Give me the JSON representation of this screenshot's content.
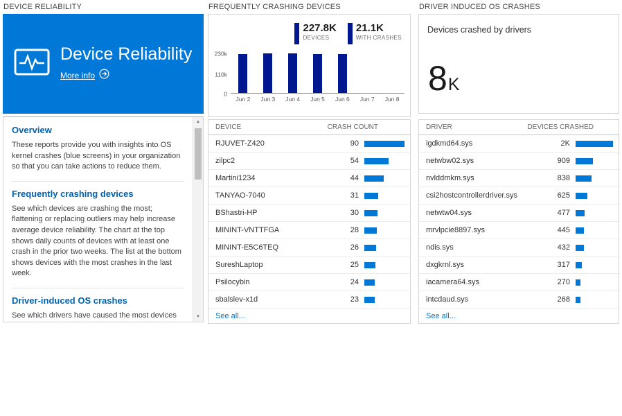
{
  "colors": {
    "tile_blue": "#0078d7",
    "chart_bar": "#00188f",
    "table_bar": "#0078d7",
    "heading_blue": "#0063af",
    "link_blue": "#0072c6"
  },
  "reliability": {
    "header": "DEVICE RELIABILITY",
    "tile": {
      "title": "Device Reliability",
      "more_info": "More info"
    },
    "sections": [
      {
        "heading": "Overview",
        "body": "These reports provide you with insights into OS kernel crashes (blue screens) in your organization so that you can take actions to reduce them."
      },
      {
        "heading": "Frequently crashing devices",
        "body": "See which devices are crashing the most; flattening or replacing outliers may help increase average device reliability. The chart at the top shows daily counts of devices with at least one crash in the prior two weeks. The list at the bottom shows devices with the most crashes in the last week."
      },
      {
        "heading": "Driver-induced OS crashes",
        "body": "See which drivers have caused the most devices to crash in the last two weeks; upgrading or replacing these drivers"
      }
    ]
  },
  "crashing_devices": {
    "header": "FREQUENTLY CRASHING DEVICES",
    "table": {
      "name_header": "DEVICE",
      "value_header": "CRASH COUNT",
      "see_all": "See all...",
      "rows": [
        {
          "name": "RJUVET-Z420",
          "display": "90",
          "value": 90
        },
        {
          "name": "zilpc2",
          "display": "54",
          "value": 54
        },
        {
          "name": "Martini1234",
          "display": "44",
          "value": 44
        },
        {
          "name": "TANYAO-7040",
          "display": "31",
          "value": 31
        },
        {
          "name": "BShastri-HP",
          "display": "30",
          "value": 30
        },
        {
          "name": "MININT-VNTTFGA",
          "display": "28",
          "value": 28
        },
        {
          "name": "MININT-E5C6TEQ",
          "display": "26",
          "value": 26
        },
        {
          "name": "SureshLaptop",
          "display": "25",
          "value": 25
        },
        {
          "name": "Psilocybin",
          "display": "24",
          "value": 24
        },
        {
          "name": "sbalslev-x1d",
          "display": "23",
          "value": 23
        }
      ]
    }
  },
  "driver_crashes": {
    "header": "DRIVER INDUCED OS CRASHES",
    "summary": {
      "label": "Devices crashed by drivers",
      "value": "8",
      "unit": "K"
    },
    "table": {
      "name_header": "DRIVER",
      "value_header": "DEVICES CRASHED",
      "see_all": "See all...",
      "rows": [
        {
          "name": "igdkmd64.sys",
          "display": "2K",
          "value": 2000
        },
        {
          "name": "netwbw02.sys",
          "display": "909",
          "value": 909
        },
        {
          "name": "nvlddmkm.sys",
          "display": "838",
          "value": 838
        },
        {
          "name": "csi2hostcontrollerdriver.sys",
          "display": "625",
          "value": 625
        },
        {
          "name": "netwtw04.sys",
          "display": "477",
          "value": 477
        },
        {
          "name": "mrvlpcie8897.sys",
          "display": "445",
          "value": 445
        },
        {
          "name": "ndis.sys",
          "display": "432",
          "value": 432
        },
        {
          "name": "dxgkrnl.sys",
          "display": "317",
          "value": 317
        },
        {
          "name": "iacamera64.sys",
          "display": "270",
          "value": 270
        },
        {
          "name": "intcdaud.sys",
          "display": "268",
          "value": 268
        }
      ]
    }
  },
  "chart_data": {
    "type": "bar",
    "title": "FREQUENTLY CRASHING DEVICES",
    "categories": [
      "Jun 2",
      "Jun 3",
      "Jun 4",
      "Jun 5",
      "Jun 6",
      "Jun 7",
      "Jun 8"
    ],
    "values": [
      228000,
      230000,
      229000,
      227000,
      225000,
      0,
      0
    ],
    "ylim": [
      0,
      230000
    ],
    "yticks": [
      {
        "label": "230k",
        "frac": 1
      },
      {
        "label": "110k",
        "frac": 0.478
      },
      {
        "label": "0",
        "frac": 0
      }
    ],
    "legend": [
      {
        "display": "227.8K",
        "label": "DEVICES"
      },
      {
        "display": "21.1K",
        "label": "WITH CRASHES"
      }
    ],
    "bar_color": "#00188f",
    "xlabel": "",
    "ylabel": ""
  }
}
